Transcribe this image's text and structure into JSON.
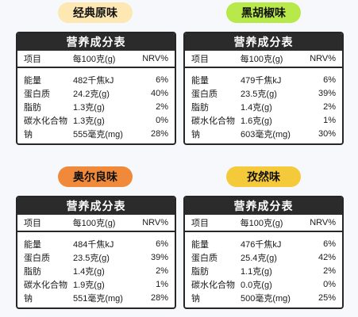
{
  "colors": {
    "yellow_pill": "#fde8b3",
    "green_pill": "#b8e94a",
    "orange_pill": "#f08a3a",
    "gold_pill": "#f4c93a",
    "card_header": "#2b2b2b"
  },
  "cards": [
    {
      "flavor": "经典原味",
      "title": "营养成分表",
      "headers": [
        "项目",
        "每100克(g)",
        "NRV%"
      ],
      "rows": [
        [
          "能量",
          "482千焦kJ",
          "6%"
        ],
        [
          "蛋白质",
          "24.2克(g)",
          "40%"
        ],
        [
          "脂肪",
          "1.3克(g)",
          "2%"
        ],
        [
          "碳水化合物",
          "1.3克(g)",
          "0%"
        ],
        [
          "钠",
          "555毫克(mg)",
          "28%"
        ]
      ]
    },
    {
      "flavor": "黑胡椒味",
      "title": "营养成分表",
      "headers": [
        "项目",
        "每100克(g)",
        "NRV%"
      ],
      "rows": [
        [
          "能量",
          "479千焦kJ",
          "6%"
        ],
        [
          "蛋白质",
          "23.5克(g)",
          "39%"
        ],
        [
          "脂肪",
          "1.4克(g)",
          "2%"
        ],
        [
          "碳水化合物",
          "1.6克(g)",
          "1%"
        ],
        [
          "钠",
          "603毫克(mg)",
          "30%"
        ]
      ]
    },
    {
      "flavor": "奥尔良味",
      "title": "营养成分表",
      "headers": [
        "项目",
        "每100克(g)",
        "NRV%"
      ],
      "rows": [
        [
          "能量",
          "484千焦kJ",
          "6%"
        ],
        [
          "蛋白质",
          "23.5克(g)",
          "39%"
        ],
        [
          "脂肪",
          "1.4克(g)",
          "2%"
        ],
        [
          "碳水化合物",
          "1.9克(g)",
          "1%"
        ],
        [
          "钠",
          "551毫克(mg)",
          "28%"
        ]
      ]
    },
    {
      "flavor": "孜然味",
      "title": "营养成分表",
      "headers": [
        "项目",
        "每100克(g)",
        "NRV%"
      ],
      "rows": [
        [
          "能量",
          "476千焦kJ",
          "6%"
        ],
        [
          "蛋白质",
          "25.4克(g)",
          "42%"
        ],
        [
          "脂肪",
          "1.1克(g)",
          "2%"
        ],
        [
          "碳水化合物",
          "0.0克(g)",
          "0%"
        ],
        [
          "钠",
          "500毫克(mg)",
          "25%"
        ]
      ]
    }
  ]
}
